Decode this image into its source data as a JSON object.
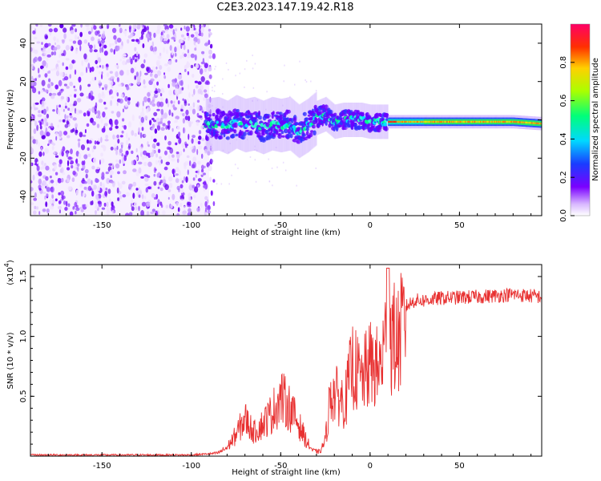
{
  "title": "C2E3.2023.147.19.42.R18",
  "chart_data": [
    {
      "type": "heatmap",
      "xlabel": "Height of straight line (km)",
      "ylabel": "Frequency (Hz)",
      "xlim": [
        -190,
        96
      ],
      "ylim": [
        -50,
        50
      ],
      "xticks": [
        -150,
        -100,
        -50,
        0,
        50
      ],
      "yticks": [
        -40,
        -20,
        0,
        20,
        40
      ],
      "noise_region_x": [
        -190,
        -90
      ],
      "signal_ridge": {
        "x": [
          -92,
          -85,
          -80,
          -75,
          -70,
          -65,
          -60,
          -55,
          -50,
          -45,
          -40,
          -35,
          -30,
          -25,
          -20,
          -15,
          -10,
          -5,
          0,
          10,
          20,
          40,
          60,
          80,
          96
        ],
        "freq_hz": [
          -3,
          -2,
          -4,
          -1,
          -3,
          -2,
          -4,
          -2,
          -3,
          -2,
          -6,
          -3,
          1,
          3,
          -1,
          0,
          0,
          0,
          -1,
          -1,
          -1,
          -1,
          -1,
          -1,
          -2
        ]
      },
      "colorbar": {
        "label": "Normalized spectral amplitude",
        "range": [
          0,
          1
        ],
        "ticks": [
          "0.0",
          "0.2",
          "0.4",
          "0.6",
          "0.8"
        ],
        "colormap": "rainbow (white-violet-blue-cyan-green-yellow-red)"
      },
      "grid": false
    },
    {
      "type": "line",
      "xlabel": "Height of straight line (km)",
      "ylabel": "SNR (10 * v/v)",
      "scale_label": "(x10",
      "scale_exp": "4",
      "xlim": [
        -190,
        96
      ],
      "ylim": [
        0,
        1.6
      ],
      "xticks": [
        -150,
        -100,
        -50,
        0,
        50
      ],
      "yticks": [
        "0.5",
        "1.0",
        "1.5"
      ],
      "line_color": "#e83030",
      "envelope": {
        "x": [
          -190,
          -100,
          -90,
          -85,
          -80,
          -75,
          -70,
          -65,
          -60,
          -55,
          -50,
          -45,
          -40,
          -35,
          -32,
          -28,
          -25,
          -22,
          -18,
          -14,
          -10,
          -5,
          0,
          5,
          10,
          15,
          20,
          25,
          30,
          40,
          60,
          80,
          96
        ],
        "snr": [
          0.01,
          0.01,
          0.02,
          0.03,
          0.08,
          0.2,
          0.35,
          0.22,
          0.3,
          0.4,
          0.55,
          0.45,
          0.3,
          0.12,
          0.05,
          0.04,
          0.15,
          0.6,
          0.55,
          0.5,
          0.85,
          0.7,
          0.85,
          0.8,
          1.15,
          1.05,
          1.25,
          1.3,
          1.3,
          1.32,
          1.33,
          1.35,
          1.33
        ]
      },
      "grid": false
    }
  ]
}
